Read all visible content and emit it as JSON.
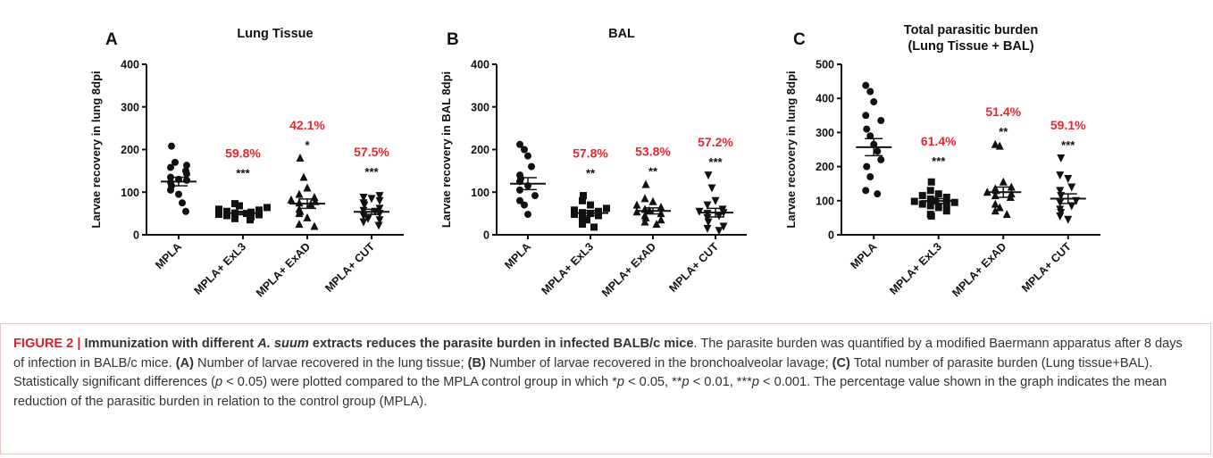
{
  "colors": {
    "annotation_red": "#e8262e",
    "marks": "#111111",
    "caption_label_red": "#d2242e",
    "caption_border": "#e7c8c4"
  },
  "chart_data": [
    {
      "type": "scatter",
      "panel_letter": "A",
      "title": "Lung Tissue",
      "ylabel": "Larvae recovery in lung 8dpi",
      "ylim": [
        0,
        400
      ],
      "yticks": [
        "0",
        "100",
        "200",
        "300",
        "400"
      ],
      "categories": [
        "MPLA",
        "MPLA+ ExL3",
        "MPLA+ ExAD",
        "MPLA+ CUT"
      ],
      "marker_shapes": [
        "circle",
        "square",
        "triangle-up",
        "triangle-down"
      ],
      "series": [
        {
          "values": [
            208,
            170,
            163,
            158,
            150,
            143,
            135,
            130,
            128,
            123,
            115,
            105,
            95,
            75,
            55
          ],
          "mean": 125,
          "sem": 10
        },
        {
          "values": [
            73,
            68,
            64,
            60,
            58,
            55,
            53,
            51,
            50,
            48,
            47,
            45,
            42,
            38,
            35
          ],
          "mean": 51,
          "sem": 4
        },
        {
          "values": [
            180,
            135,
            110,
            95,
            88,
            82,
            78,
            75,
            72,
            60,
            55,
            50,
            40,
            25,
            20
          ],
          "mean": 73,
          "sem": 11
        },
        {
          "values": [
            92,
            88,
            85,
            80,
            75,
            70,
            62,
            57,
            55,
            50,
            45,
            38,
            35,
            30,
            22
          ],
          "mean": 54,
          "sem": 6
        }
      ],
      "significance": [
        "",
        "***",
        "*",
        "***"
      ],
      "reduction": [
        "",
        "59.8%",
        "42.1%",
        "57.5%"
      ]
    },
    {
      "type": "scatter",
      "panel_letter": "B",
      "title": "BAL",
      "ylabel": "Larvae recovery in BAL 8dpi",
      "ylim": [
        0,
        400
      ],
      "yticks": [
        "0",
        "100",
        "200",
        "300",
        "400"
      ],
      "categories": [
        "MPLA",
        "MPLA+ ExL3",
        "MPLA+ ExAD",
        "MPLA+ CUT"
      ],
      "marker_shapes": [
        "circle",
        "square",
        "triangle-up",
        "triangle-down"
      ],
      "series": [
        {
          "values": [
            212,
            200,
            185,
            160,
            140,
            132,
            125,
            115,
            105,
            92,
            80,
            70,
            48
          ],
          "mean": 120,
          "sem": 14
        },
        {
          "values": [
            92,
            80,
            70,
            62,
            58,
            55,
            52,
            50,
            48,
            45,
            40,
            35,
            25,
            18
          ],
          "mean": 51,
          "sem": 6
        },
        {
          "values": [
            118,
            85,
            78,
            70,
            65,
            60,
            57,
            54,
            50,
            45,
            40,
            35,
            30,
            25
          ],
          "mean": 56,
          "sem": 7
        },
        {
          "values": [
            140,
            110,
            80,
            70,
            60,
            55,
            52,
            50,
            45,
            40,
            30,
            20,
            15,
            10
          ],
          "mean": 52,
          "sem": 10
        }
      ],
      "significance": [
        "",
        "**",
        "**",
        "***"
      ],
      "reduction": [
        "",
        "57.8%",
        "53.8%",
        "57.2%"
      ]
    },
    {
      "type": "scatter",
      "panel_letter": "C",
      "title": "Total parasitic burden\n(Lung Tissue + BAL)",
      "ylabel": "Larvae recovery in lung 8dpi",
      "ylim": [
        0,
        500
      ],
      "yticks": [
        "0",
        "100",
        "200",
        "300",
        "400",
        "500"
      ],
      "categories": [
        "MPLA",
        "MPLA+ ExL3",
        "MPLA+ ExAD",
        "MPLA+ CUT"
      ],
      "marker_shapes": [
        "circle",
        "square",
        "triangle-up",
        "triangle-down"
      ],
      "series": [
        {
          "values": [
            438,
            420,
            390,
            350,
            335,
            310,
            290,
            265,
            245,
            220,
            200,
            170,
            130,
            120
          ],
          "mean": 257,
          "sem": 25
        },
        {
          "values": [
            155,
            130,
            120,
            115,
            110,
            105,
            100,
            98,
            95,
            90,
            88,
            85,
            80,
            70,
            60,
            55
          ],
          "mean": 99,
          "sem": 7
        },
        {
          "values": [
            265,
            260,
            155,
            140,
            135,
            130,
            125,
            120,
            115,
            110,
            90,
            80,
            70,
            60
          ],
          "mean": 125,
          "sem": 15
        },
        {
          "values": [
            225,
            175,
            165,
            140,
            130,
            115,
            100,
            95,
            85,
            75,
            65,
            55,
            45
          ],
          "mean": 106,
          "sem": 14
        }
      ],
      "significance": [
        "",
        "***",
        "**",
        "***"
      ],
      "reduction": [
        "",
        "61.4%",
        "51.4%",
        "59.1%"
      ]
    }
  ],
  "caption": {
    "label": "FIGURE 2 |",
    "line1_pre": " Immunization with different ",
    "line1_italic": "A. suum",
    "line1_post": " extracts reduces the parasite burden in infected BALB/c mice",
    "line1_end": ".",
    "line2": " The parasite burden was quantified by a modified Baermann apparatus after 8 days of infection in BALB/c mice. ",
    "a_label": "(A)",
    "a_text": " Number of larvae recovered in the lung tissue; ",
    "b_label": "(B)",
    "b_text": " Number of larvae recovered in the bronchoalveolar lavage; ",
    "c_label": "(C)",
    "c_text": " Total number of parasite burden (Lung tissue+BAL). Statistically significant differences (",
    "p1": "p",
    "t1": " < 0.05) were plotted compared to the MPLA control group in which *",
    "p2": "p",
    "t2": " < 0.05, **",
    "p3": "p",
    "t3": " < 0.01, ***",
    "p4": "p",
    "t4": " <  0.001. The percentage value shown in the graph indicates the mean reduction of the parasitic burden in relation to the control group (MPLA)."
  }
}
